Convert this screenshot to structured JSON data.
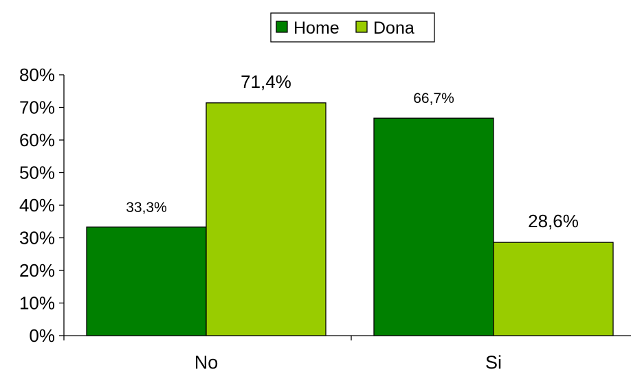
{
  "chart_data": {
    "type": "bar",
    "categories": [
      "No",
      "Si"
    ],
    "series": [
      {
        "name": "Home",
        "values": [
          33.3,
          66.7
        ],
        "labels": [
          "33,3%",
          "66,7%"
        ],
        "color": "#008000"
      },
      {
        "name": "Dona",
        "values": [
          71.4,
          28.6
        ],
        "labels": [
          "71,4%",
          "28,6%"
        ],
        "color": "#99cc00"
      }
    ],
    "yticks": [
      "0%",
      "10%",
      "20%",
      "30%",
      "40%",
      "50%",
      "60%",
      "70%",
      "80%"
    ],
    "ylim": [
      0,
      80
    ],
    "grid": false,
    "legend": "top-center"
  }
}
